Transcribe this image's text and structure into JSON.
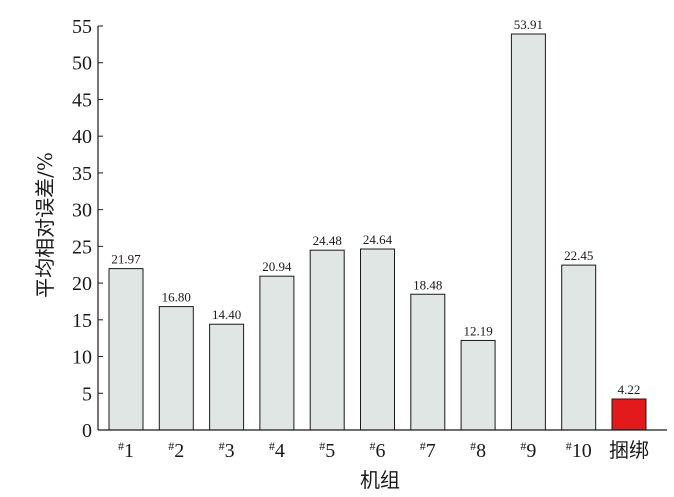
{
  "chart_data": {
    "type": "bar",
    "categories": [
      "#1",
      "#2",
      "#3",
      "#4",
      "#5",
      "#6",
      "#7",
      "#8",
      "#9",
      "#10",
      "捆绑"
    ],
    "values": [
      21.97,
      16.8,
      14.4,
      20.94,
      24.48,
      24.64,
      18.48,
      12.19,
      53.91,
      22.45,
      4.22
    ],
    "data_labels": [
      "21.97",
      "16.80",
      "14.40",
      "20.94",
      "24.48",
      "24.64",
      "18.48",
      "12.19",
      "53.91",
      "22.45",
      "4.22"
    ],
    "xlabel": "机组",
    "ylabel": "平均相对误差/%",
    "ylim": [
      0,
      55
    ],
    "yticks": [
      0,
      5,
      10,
      15,
      20,
      25,
      30,
      35,
      40,
      45,
      50,
      55
    ],
    "grid": false,
    "legend": "none",
    "colors": {
      "bar_default": "#dfe6e3",
      "bar_highlight": "#e31a1c",
      "bar_stroke": "#1a1a1a",
      "axis": "#1a1a1a"
    },
    "highlight_index": 10
  }
}
